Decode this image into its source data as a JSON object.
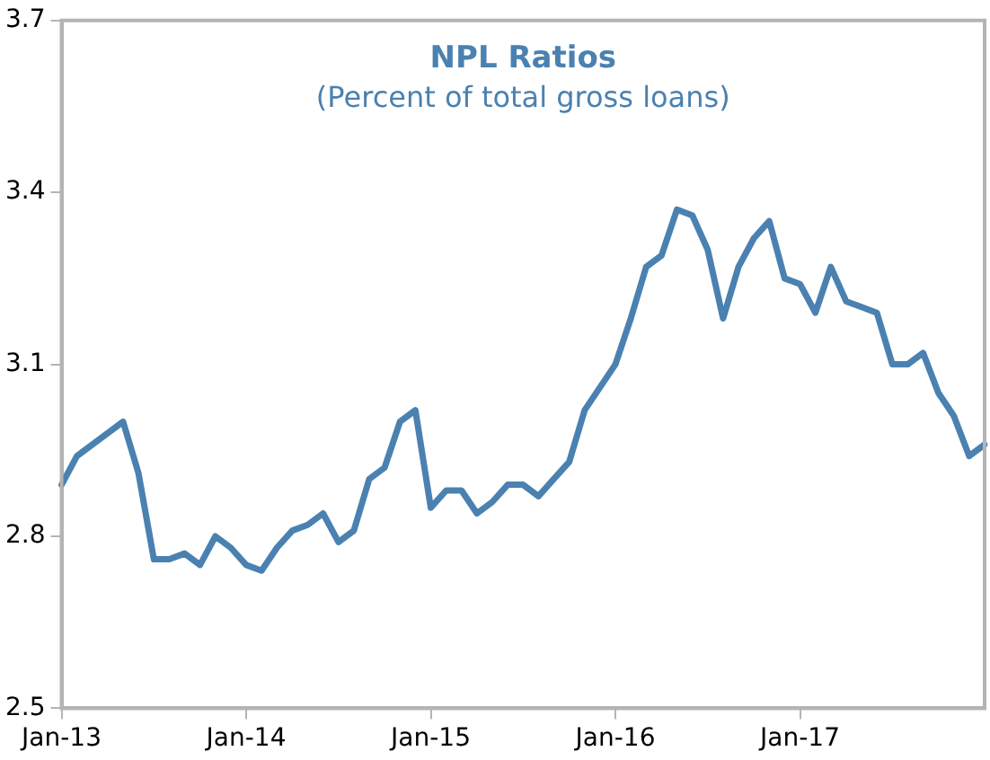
{
  "chart_data": {
    "type": "line",
    "title": "NPL Ratios",
    "subtitle": "(Percent of total gross loans)",
    "categories": [
      "Jan-13",
      null,
      null,
      null,
      null,
      null,
      null,
      null,
      null,
      null,
      null,
      null,
      "Jan-14",
      null,
      null,
      null,
      null,
      null,
      null,
      null,
      null,
      null,
      null,
      null,
      "Jan-15",
      null,
      null,
      null,
      null,
      null,
      null,
      null,
      null,
      null,
      null,
      null,
      "Jan-16",
      null,
      null,
      null,
      null,
      null,
      null,
      null,
      null,
      null,
      null,
      null,
      "Jan-17",
      null,
      null,
      null,
      null,
      null,
      null,
      null,
      null,
      null,
      null,
      null,
      null
    ],
    "series": [
      {
        "color": "#4a81b0",
        "values": [
          2.89,
          2.94,
          2.96,
          2.98,
          3.0,
          2.91,
          2.76,
          2.76,
          2.77,
          2.75,
          2.8,
          2.78,
          2.75,
          2.74,
          2.78,
          2.81,
          2.82,
          2.84,
          2.79,
          2.81,
          2.9,
          2.92,
          3.0,
          3.02,
          2.85,
          2.88,
          2.88,
          2.84,
          2.86,
          2.89,
          2.89,
          2.87,
          2.9,
          2.93,
          3.02,
          3.06,
          3.1,
          3.18,
          3.27,
          3.29,
          3.37,
          3.36,
          3.3,
          3.18,
          3.27,
          3.32,
          3.35,
          3.25,
          3.24,
          3.19,
          3.27,
          3.21,
          3.2,
          3.19,
          3.1,
          3.1,
          3.12,
          3.05,
          3.01,
          2.94,
          2.96
        ]
      }
    ],
    "ylim": [
      2.5,
      3.7
    ],
    "yticks": [
      2.5,
      2.8,
      3.1,
      3.4,
      3.7
    ],
    "grid": false,
    "legend": false,
    "marker": "none",
    "line_style": "solid"
  }
}
